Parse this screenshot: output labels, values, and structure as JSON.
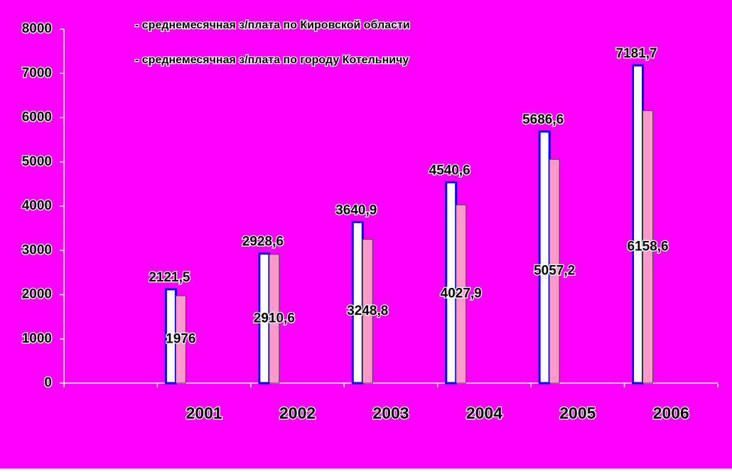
{
  "chart_data": {
    "type": "bar",
    "categories": [
      null,
      "2001",
      "2002",
      "2003",
      "2004",
      "2005",
      "2006"
    ],
    "series": [
      {
        "name": "- среднемесячная з/плата по Кировской области",
        "color": "#0000ff",
        "values": [
          null,
          2121.5,
          2928.6,
          3640.9,
          4540.6,
          5686.6,
          7181.7
        ],
        "value_labels": [
          null,
          "2121,5",
          "2928,6",
          "3640,9",
          "4540,6",
          "5686,6",
          "7181,7"
        ]
      },
      {
        "name": "- среднемесячная з/плата по городу Котельничу",
        "color": "#ff99cc",
        "values": [
          null,
          1976,
          2910.6,
          3248.8,
          4027.9,
          5057.2,
          6158.6
        ],
        "value_labels": [
          null,
          "1976",
          "2910,6",
          "3248,8",
          "4027,9",
          "5057,2",
          "6158,6"
        ]
      }
    ],
    "ylim": [
      0,
      8000
    ],
    "yticks": [
      0,
      1000,
      2000,
      3000,
      4000,
      5000,
      6000,
      7000,
      8000
    ],
    "background": "#ff00ff"
  }
}
